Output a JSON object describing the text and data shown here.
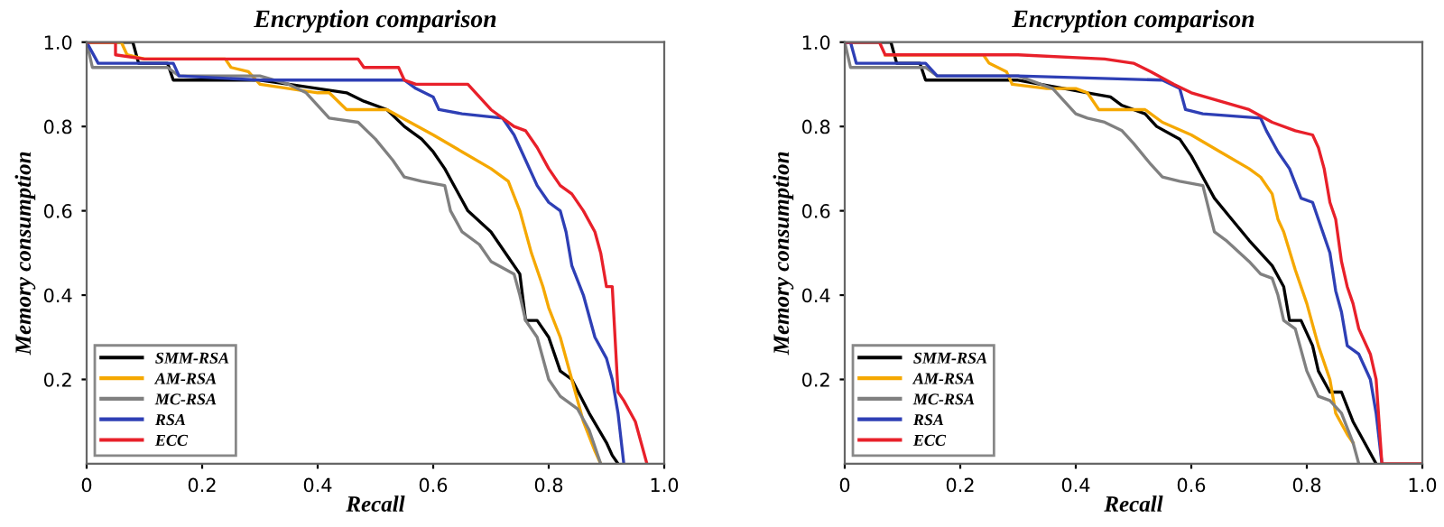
{
  "chart_data": [
    {
      "type": "line",
      "title": "Encryption comparison",
      "xlabel": "Recall",
      "ylabel": "Memory consumption",
      "xlim": [
        0,
        1
      ],
      "ylim": [
        0,
        1
      ],
      "xticks": [
        0,
        {
          "value": 0.2,
          "label": "0.2"
        },
        {
          "value": 0.4,
          "label": "0.4"
        },
        {
          "value": 0.6,
          "label": "0.6"
        },
        {
          "value": 0.8,
          "label": "0.8"
        },
        {
          "value": 1.0,
          "label": "1.0"
        }
      ],
      "yticks": [
        {
          "value": 0.2,
          "label": "0.2"
        },
        {
          "value": 0.4,
          "label": "0.4"
        },
        {
          "value": 0.6,
          "label": "0.6"
        },
        {
          "value": 0.8,
          "label": "0.8"
        },
        {
          "value": 1.0,
          "label": "1.0"
        }
      ],
      "legend": "bottom left",
      "grid": false,
      "series": [
        {
          "name": "SMM-RSA",
          "color": "#000000",
          "x": [
            0,
            0.08,
            0.09,
            0.14,
            0.15,
            0.3,
            0.35,
            0.4,
            0.45,
            0.48,
            0.52,
            0.55,
            0.58,
            0.6,
            0.62,
            0.64,
            0.66,
            0.7,
            0.73,
            0.75,
            0.76,
            0.78,
            0.8,
            0.82,
            0.84,
            0.87,
            0.9,
            0.91,
            0.92
          ],
          "values": [
            1,
            1,
            0.95,
            0.95,
            0.91,
            0.91,
            0.9,
            0.89,
            0.88,
            0.86,
            0.84,
            0.8,
            0.77,
            0.74,
            0.7,
            0.65,
            0.6,
            0.55,
            0.49,
            0.45,
            0.34,
            0.34,
            0.3,
            0.22,
            0.2,
            0.12,
            0.05,
            0.02,
            0
          ]
        },
        {
          "name": "AM-RSA",
          "color": "#f5a800",
          "x": [
            0,
            0.06,
            0.07,
            0.1,
            0.24,
            0.25,
            0.28,
            0.3,
            0.35,
            0.4,
            0.42,
            0.45,
            0.52,
            0.56,
            0.6,
            0.65,
            0.7,
            0.73,
            0.75,
            0.77,
            0.79,
            0.8,
            0.82,
            0.84,
            0.86,
            0.88,
            0.89
          ],
          "values": [
            1,
            1,
            0.97,
            0.96,
            0.96,
            0.94,
            0.93,
            0.9,
            0.89,
            0.88,
            0.88,
            0.84,
            0.84,
            0.81,
            0.78,
            0.74,
            0.7,
            0.67,
            0.6,
            0.5,
            0.42,
            0.37,
            0.3,
            0.2,
            0.1,
            0.03,
            0
          ]
        },
        {
          "name": "MC-RSA",
          "color": "#808080",
          "x": [
            0,
            0.01,
            0.14,
            0.16,
            0.3,
            0.35,
            0.38,
            0.4,
            0.42,
            0.47,
            0.5,
            0.53,
            0.55,
            0.58,
            0.62,
            0.63,
            0.65,
            0.68,
            0.7,
            0.74,
            0.75,
            0.76,
            0.78,
            0.8,
            0.82,
            0.85,
            0.87,
            0.89
          ],
          "values": [
            1,
            0.94,
            0.94,
            0.92,
            0.92,
            0.9,
            0.88,
            0.85,
            0.82,
            0.81,
            0.77,
            0.72,
            0.68,
            0.67,
            0.66,
            0.6,
            0.55,
            0.52,
            0.48,
            0.45,
            0.4,
            0.34,
            0.3,
            0.2,
            0.16,
            0.13,
            0.08,
            0
          ]
        },
        {
          "name": "RSA",
          "color": "#2e3fb5",
          "x": [
            0,
            0.02,
            0.15,
            0.16,
            0.3,
            0.55,
            0.57,
            0.6,
            0.61,
            0.65,
            0.72,
            0.74,
            0.76,
            0.78,
            0.8,
            0.82,
            0.83,
            0.84,
            0.86,
            0.88,
            0.9,
            0.91,
            0.92,
            0.93
          ],
          "values": [
            1,
            0.95,
            0.95,
            0.92,
            0.91,
            0.91,
            0.89,
            0.87,
            0.84,
            0.83,
            0.82,
            0.78,
            0.72,
            0.66,
            0.62,
            0.6,
            0.55,
            0.47,
            0.4,
            0.3,
            0.25,
            0.2,
            0.12,
            0
          ]
        },
        {
          "name": "ECC",
          "color": "#e8202a",
          "x": [
            0,
            0.05,
            0.05,
            0.1,
            0.47,
            0.48,
            0.54,
            0.55,
            0.57,
            0.66,
            0.68,
            0.7,
            0.72,
            0.74,
            0.76,
            0.78,
            0.8,
            0.82,
            0.84,
            0.86,
            0.88,
            0.89,
            0.9,
            0.91,
            0.92,
            0.93,
            0.95,
            0.97
          ],
          "values": [
            1,
            1,
            0.97,
            0.96,
            0.96,
            0.94,
            0.94,
            0.91,
            0.9,
            0.9,
            0.87,
            0.84,
            0.82,
            0.8,
            0.79,
            0.75,
            0.7,
            0.66,
            0.64,
            0.6,
            0.55,
            0.5,
            0.42,
            0.42,
            0.17,
            0.15,
            0.1,
            0
          ]
        }
      ]
    },
    {
      "type": "line",
      "title": "Encryption comparison",
      "xlabel": "Recall",
      "ylabel": "Memory consumption",
      "xlim": [
        0,
        1
      ],
      "ylim": [
        0,
        1
      ],
      "xticks": [
        0,
        {
          "value": 0.2,
          "label": "0.2"
        },
        {
          "value": 0.4,
          "label": "0.4"
        },
        {
          "value": 0.6,
          "label": "0.6"
        },
        {
          "value": 0.8,
          "label": "0.8"
        },
        {
          "value": 1.0,
          "label": "1.0"
        }
      ],
      "yticks": [
        {
          "value": 0.2,
          "label": "0.2"
        },
        {
          "value": 0.4,
          "label": "0.4"
        },
        {
          "value": 0.6,
          "label": "0.6"
        },
        {
          "value": 0.8,
          "label": "0.8"
        },
        {
          "value": 1.0,
          "label": "1.0"
        }
      ],
      "legend": "bottom left",
      "grid": false,
      "series": [
        {
          "name": "SMM-RSA",
          "color": "#000000",
          "x": [
            0,
            0.08,
            0.09,
            0.13,
            0.14,
            0.3,
            0.38,
            0.42,
            0.46,
            0.48,
            0.52,
            0.54,
            0.58,
            0.6,
            0.62,
            0.64,
            0.67,
            0.7,
            0.72,
            0.74,
            0.76,
            0.77,
            0.79,
            0.81,
            0.82,
            0.84,
            0.86,
            0.88,
            0.9,
            0.92
          ],
          "values": [
            1,
            1,
            0.95,
            0.95,
            0.91,
            0.91,
            0.89,
            0.88,
            0.87,
            0.85,
            0.83,
            0.8,
            0.77,
            0.73,
            0.68,
            0.63,
            0.58,
            0.53,
            0.5,
            0.47,
            0.42,
            0.34,
            0.34,
            0.28,
            0.22,
            0.17,
            0.17,
            0.1,
            0.05,
            0
          ]
        },
        {
          "name": "AM-RSA",
          "color": "#f5a800",
          "x": [
            0.07,
            0.24,
            0.25,
            0.28,
            0.29,
            0.35,
            0.4,
            0.42,
            0.44,
            0.52,
            0.55,
            0.6,
            0.65,
            0.7,
            0.72,
            0.74,
            0.75,
            0.76,
            0.78,
            0.8,
            0.82,
            0.84,
            0.85,
            0.87,
            0.88
          ],
          "values": [
            0.97,
            0.97,
            0.95,
            0.93,
            0.9,
            0.89,
            0.89,
            0.88,
            0.84,
            0.84,
            0.81,
            0.78,
            0.74,
            0.7,
            0.68,
            0.64,
            0.58,
            0.55,
            0.46,
            0.38,
            0.28,
            0.2,
            0.12,
            0.07,
            0.05
          ]
        },
        {
          "name": "MC-RSA",
          "color": "#808080",
          "x": [
            0,
            0.01,
            0.14,
            0.16,
            0.3,
            0.36,
            0.38,
            0.4,
            0.42,
            0.45,
            0.48,
            0.5,
            0.53,
            0.55,
            0.58,
            0.62,
            0.64,
            0.66,
            0.7,
            0.72,
            0.74,
            0.75,
            0.76,
            0.78,
            0.8,
            0.82,
            0.84,
            0.86,
            0.88,
            0.89
          ],
          "values": [
            1,
            0.94,
            0.94,
            0.92,
            0.92,
            0.89,
            0.86,
            0.83,
            0.82,
            0.81,
            0.79,
            0.76,
            0.71,
            0.68,
            0.67,
            0.66,
            0.55,
            0.53,
            0.48,
            0.45,
            0.44,
            0.4,
            0.34,
            0.32,
            0.22,
            0.16,
            0.15,
            0.12,
            0.05,
            0
          ]
        },
        {
          "name": "RSA",
          "color": "#2e3fb5",
          "x": [
            0,
            0.01,
            0.02,
            0.14,
            0.16,
            0.3,
            0.55,
            0.58,
            0.59,
            0.62,
            0.72,
            0.73,
            0.75,
            0.77,
            0.79,
            0.81,
            0.82,
            0.84,
            0.85,
            0.86,
            0.87,
            0.89,
            0.91,
            0.92,
            0.93
          ],
          "values": [
            1,
            1,
            0.95,
            0.95,
            0.92,
            0.92,
            0.91,
            0.89,
            0.84,
            0.83,
            0.82,
            0.79,
            0.74,
            0.7,
            0.63,
            0.62,
            0.58,
            0.5,
            0.41,
            0.36,
            0.28,
            0.26,
            0.2,
            0.12,
            0
          ]
        },
        {
          "name": "ECC",
          "color": "#e8202a",
          "x": [
            0,
            0.06,
            0.07,
            0.3,
            0.45,
            0.5,
            0.53,
            0.57,
            0.6,
            0.65,
            0.7,
            0.74,
            0.78,
            0.81,
            0.82,
            0.83,
            0.84,
            0.85,
            0.86,
            0.87,
            0.88,
            0.89,
            0.91,
            0.92,
            0.93,
            1.0
          ],
          "values": [
            1,
            1,
            0.97,
            0.97,
            0.96,
            0.95,
            0.93,
            0.9,
            0.88,
            0.86,
            0.84,
            0.81,
            0.79,
            0.78,
            0.75,
            0.7,
            0.62,
            0.58,
            0.48,
            0.42,
            0.38,
            0.32,
            0.26,
            0.2,
            0,
            0
          ]
        }
      ]
    }
  ]
}
